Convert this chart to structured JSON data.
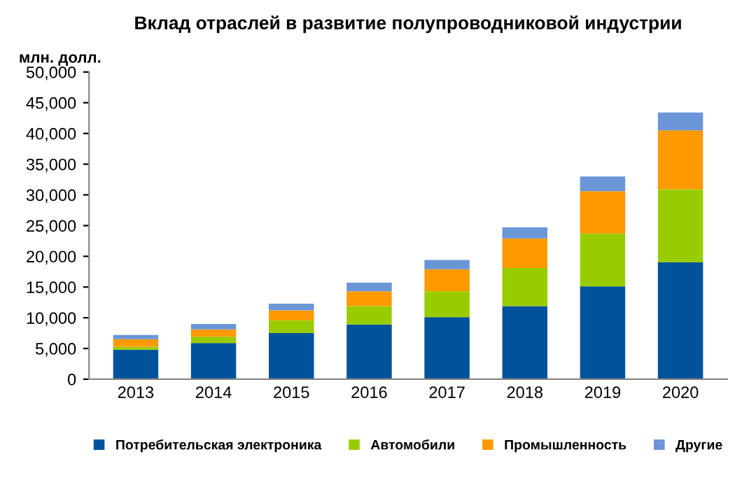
{
  "chart_data": {
    "type": "bar",
    "title": "Вклад отраслей в развитие полупроводниковой индустрии",
    "ylabel": "млн. долл.",
    "stacked": true,
    "categories": [
      "2013",
      "2014",
      "2015",
      "2016",
      "2017",
      "2018",
      "2019",
      "2020"
    ],
    "series": [
      {
        "name": "Потребительская электроника",
        "color": "#00529b",
        "values": [
          4800,
          5900,
          7500,
          8900,
          10100,
          11900,
          15100,
          19000
        ]
      },
      {
        "name": "Автомобили",
        "color": "#99cc00",
        "values": [
          500,
          1000,
          2100,
          3000,
          4200,
          6200,
          8600,
          11900
        ]
      },
      {
        "name": "Промышленность",
        "color": "#ff9900",
        "values": [
          1200,
          1200,
          1600,
          2400,
          3600,
          4800,
          6900,
          9600
        ]
      },
      {
        "name": "Другие",
        "color": "#6a96d8",
        "values": [
          700,
          900,
          1100,
          1400,
          1500,
          1800,
          2400,
          2900
        ]
      }
    ],
    "ylim": [
      0,
      50000
    ],
    "yticks": [
      0,
      {
        "value": 5000,
        "label": "5,000"
      },
      {
        "value": 10000,
        "label": "10,000"
      },
      {
        "value": 15000,
        "label": "15,000"
      },
      {
        "value": 20000,
        "label": "20,000"
      },
      {
        "value": 25000,
        "label": "25,000"
      },
      {
        "value": 30000,
        "label": "30,000"
      },
      {
        "value": 35000,
        "label": "35,000"
      },
      {
        "value": 40000,
        "label": "40,000"
      },
      {
        "value": 45000,
        "label": "45,000"
      },
      {
        "value": 50000,
        "label": "50,000"
      }
    ],
    "grid": false,
    "legend": "bottom"
  }
}
